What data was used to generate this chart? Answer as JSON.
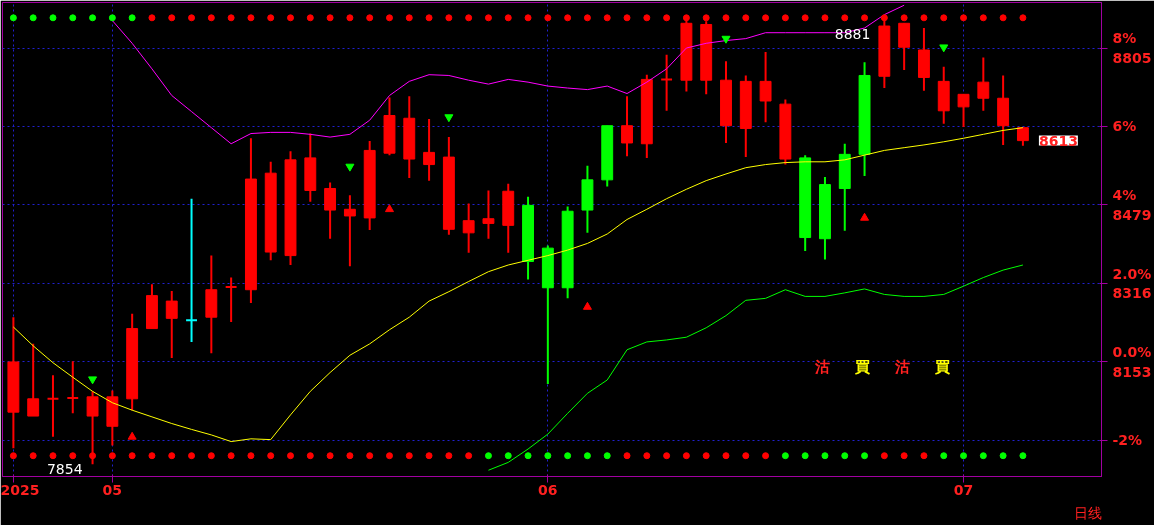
{
  "chart_data": {
    "type": "candlestick",
    "categories": [
      "2025",
      null,
      null,
      null,
      null,
      "05",
      null,
      null,
      null,
      null,
      null,
      null,
      null,
      null,
      null,
      null,
      null,
      null,
      null,
      null,
      null,
      null,
      null,
      null,
      null,
      null,
      null,
      "06",
      null,
      null,
      null,
      null,
      null,
      null,
      null,
      null,
      null,
      null,
      null,
      null,
      null,
      null,
      null,
      null,
      null,
      null,
      null,
      null,
      "07",
      null,
      null,
      null
    ],
    "ohlc": [
      [
        0,
        1.14,
        -2.2,
        -1.28
      ],
      [
        -0.94,
        0.46,
        -1.38,
        -1.38
      ],
      [
        -0.94,
        -0.34,
        -1.91,
        -0.94
      ],
      [
        -0.92,
        0.02,
        -1.31,
        -0.92
      ],
      [
        -0.89,
        -0.75,
        -2.61,
        -1.38
      ],
      [
        -0.89,
        -0.73,
        -2.13,
        -1.64
      ],
      [
        0.85,
        1.23,
        -1.23,
        -0.94
      ],
      [
        1.69,
        1.98,
        0.85,
        0.85
      ],
      [
        1.55,
        1.81,
        0.1,
        1.11
      ],
      [
        1.06,
        4.16,
        0.51,
        1.06
      ],
      [
        1.84,
        2.71,
        0.22,
        1.14
      ],
      [
        1.91,
        2.15,
        1.02,
        1.91
      ],
      [
        4.66,
        5.7,
        1.5,
        1.84
      ],
      [
        4.81,
        5.1,
        2.59,
        2.8
      ],
      [
        5.15,
        5.37,
        2.47,
        2.71
      ],
      [
        5.2,
        5.82,
        4.08,
        4.37
      ],
      [
        4.42,
        4.57,
        3.14,
        3.87
      ],
      [
        3.89,
        4.25,
        2.44,
        3.72
      ],
      [
        5.39,
        5.63,
        3.36,
        3.67
      ],
      [
        6.28,
        6.74,
        5.27,
        5.32
      ],
      [
        6.21,
        6.77,
        4.69,
        5.17
      ],
      [
        5.34,
        6.19,
        4.62,
        5.03
      ],
      [
        5.22,
        5.73,
        3.24,
        3.38
      ],
      [
        3.6,
        4.04,
        2.78,
        3.29
      ],
      [
        3.65,
        4.37,
        3.14,
        3.53
      ],
      [
        4.35,
        4.54,
        2.78,
        3.48
      ],
      [
        2.56,
        4.21,
        2.1,
        3.99
      ],
      [
        1.89,
        2.97,
        -0.56,
        2.9
      ],
      [
        1.89,
        3.96,
        1.62,
        3.84
      ],
      [
        3.87,
        5.0,
        3.29,
        4.64
      ],
      [
        4.64,
        6.02,
        4.47,
        6.02
      ],
      [
        6.02,
        6.77,
        5.24,
        5.58
      ],
      [
        7.2,
        7.32,
        5.2,
        5.56
      ],
      [
        7.2,
        7.83,
        6.4,
        7.2
      ],
      [
        8.63,
        8.73,
        6.89,
        7.18
      ],
      [
        8.6,
        8.68,
        6.82,
        7.18
      ],
      [
        7.18,
        7.66,
        5.58,
        6.02
      ],
      [
        7.15,
        7.3,
        5.22,
        5.95
      ],
      [
        7.15,
        7.9,
        6.11,
        6.65
      ],
      [
        6.57,
        6.69,
        5.03,
        5.17
      ],
      [
        3.17,
        5.27,
        2.83,
        5.2
      ],
      [
        3.14,
        4.71,
        2.61,
        4.52
      ],
      [
        4.42,
        5.56,
        3.34,
        5.29
      ],
      [
        5.29,
        7.64,
        4.74,
        7.3
      ],
      [
        8.56,
        8.8,
        6.98,
        7.28
      ],
      [
        8.63,
        8.63,
        7.44,
        8.02
      ],
      [
        7.95,
        8.51,
        6.91,
        7.25
      ],
      [
        7.15,
        7.52,
        6.07,
        6.4
      ],
      [
        6.82,
        6.82,
        5.99,
        6.5
      ],
      [
        7.13,
        7.76,
        6.4,
        6.72
      ],
      [
        6.72,
        7.3,
        5.53,
        6.02
      ],
      [
        5.97,
        5.97,
        5.51,
        5.64
      ]
    ],
    "colors": [
      "#ff0000",
      "#ff0000",
      "#ff0000",
      "#ff0000",
      "#ff0000",
      "#ff0000",
      "#ff0000",
      "#ff0000",
      "#ff0000",
      "#00ffff",
      "#ff0000",
      "#ff0000",
      "#ff0000",
      "#ff0000",
      "#ff0000",
      "#ff0000",
      "#ff0000",
      "#ff0000",
      "#ff0000",
      "#ff0000",
      "#ff0000",
      "#ff0000",
      "#ff0000",
      "#ff0000",
      "#ff0000",
      "#ff0000",
      "#00ff00",
      "#00ff00",
      "#00ff00",
      "#00ff00",
      "#00ff00",
      "#ff0000",
      "#ff0000",
      "#ff0000",
      "#ff0000",
      "#ff0000",
      "#ff0000",
      "#ff0000",
      "#ff0000",
      "#ff0000",
      "#00ff00",
      "#00ff00",
      "#00ff00",
      "#00ff00",
      "#ff0000",
      "#ff0000",
      "#ff0000",
      "#ff0000",
      "#ff0000",
      "#ff0000",
      "#ff0000",
      "#ff0000"
    ],
    "series": [
      {
        "type": "line",
        "color": "#ff00ff",
        "values": [
          null,
          null,
          null,
          null,
          null,
          8.7,
          8.12,
          7.47,
          6.79,
          6.38,
          5.97,
          5.56,
          5.82,
          5.85,
          5.85,
          5.8,
          5.73,
          5.8,
          6.16,
          6.79,
          7.15,
          7.32,
          7.3,
          7.18,
          7.08,
          7.2,
          7.13,
          7.03,
          6.98,
          6.94,
          7.03,
          6.84,
          7.13,
          7.47,
          8.0,
          8.12,
          8.19,
          8.24,
          8.39,
          8.39,
          8.39,
          8.39,
          8.39,
          8.51,
          8.85,
          9.09,
          null,
          null,
          null,
          null,
          null,
          null
        ]
      },
      {
        "type": "line",
        "color": "#ffff00",
        "values": [
          0.89,
          0.41,
          -0.02,
          -0.39,
          -0.75,
          -1.04,
          -1.23,
          -1.4,
          -1.57,
          -1.72,
          -1.86,
          -2.03,
          -1.96,
          -1.98,
          -1.35,
          -0.75,
          -0.27,
          0.17,
          0.46,
          0.82,
          1.14,
          1.55,
          1.79,
          2.05,
          2.3,
          2.47,
          2.59,
          2.71,
          2.85,
          3.02,
          3.26,
          3.63,
          3.89,
          4.16,
          4.4,
          4.62,
          4.79,
          4.95,
          5.03,
          5.08,
          5.1,
          5.1,
          5.15,
          5.27,
          5.39,
          5.46,
          5.53,
          5.61,
          5.7,
          5.8,
          5.9,
          5.97
        ]
      },
      {
        "type": "line",
        "color": "#00ff00",
        "values": [
          null,
          null,
          null,
          null,
          null,
          null,
          null,
          null,
          null,
          null,
          null,
          null,
          null,
          null,
          null,
          null,
          null,
          null,
          null,
          null,
          null,
          null,
          null,
          null,
          -2.76,
          -2.56,
          -2.22,
          -1.84,
          -1.31,
          -0.8,
          -0.46,
          0.31,
          0.51,
          0.56,
          0.63,
          0.87,
          1.18,
          1.57,
          1.62,
          1.84,
          1.67,
          1.67,
          1.76,
          1.86,
          1.72,
          1.67,
          1.67,
          1.72,
          1.93,
          2.15,
          2.34,
          2.47
        ]
      },
      {
        "type": "scatter",
        "marker": "circle",
        "values": [
          8.77,
          8.77,
          8.77,
          8.77,
          8.77,
          8.77,
          8.77,
          8.77,
          8.77,
          8.77,
          8.77,
          8.77,
          8.77,
          8.77,
          8.77,
          8.77,
          8.77,
          8.77,
          8.77,
          8.77,
          8.77,
          8.77,
          8.77,
          8.77,
          8.77,
          8.77,
          8.77,
          8.77,
          8.77,
          8.77,
          8.77,
          8.77,
          8.77,
          8.77,
          8.77,
          8.77,
          8.77,
          8.77,
          8.77,
          8.77,
          8.77,
          8.77,
          8.77,
          8.77,
          8.77,
          8.77,
          8.77,
          8.77,
          8.77,
          8.77,
          8.77,
          8.77
        ],
        "colors": [
          "#00ff00",
          "#00ff00",
          "#00ff00",
          "#00ff00",
          "#00ff00",
          "#00ff00",
          "#00ff00",
          "#ff0000",
          "#ff0000",
          "#ff0000",
          "#ff0000",
          "#ff0000",
          "#ff0000",
          "#ff0000",
          "#ff0000",
          "#ff0000",
          "#ff0000",
          "#ff0000",
          "#ff0000",
          "#ff0000",
          "#ff0000",
          "#ff0000",
          "#ff0000",
          "#ff0000",
          "#ff0000",
          "#ff0000",
          "#ff0000",
          "#ff0000",
          "#ff0000",
          "#ff0000",
          "#ff0000",
          "#ff0000",
          "#ff0000",
          "#ff0000",
          "#ff0000",
          "#ff0000",
          "#ff0000",
          "#ff0000",
          "#ff0000",
          "#ff0000",
          "#ff0000",
          "#ff0000",
          "#ff0000",
          "#ff0000",
          "#ff0000",
          "#ff0000",
          "#ff0000",
          "#ff0000",
          "#ff0000",
          "#ff0000",
          "#ff0000",
          "#ff0000"
        ]
      },
      {
        "type": "scatter",
        "marker": "circle",
        "values": [
          -2.39,
          -2.39,
          -2.39,
          -2.39,
          -2.39,
          -2.39,
          -2.39,
          -2.39,
          -2.39,
          -2.39,
          -2.39,
          -2.39,
          -2.39,
          -2.39,
          -2.39,
          -2.39,
          -2.39,
          -2.39,
          -2.39,
          -2.39,
          -2.39,
          -2.39,
          -2.39,
          -2.39,
          -2.39,
          -2.39,
          -2.39,
          -2.39,
          -2.39,
          -2.39,
          -2.39,
          -2.39,
          -2.39,
          -2.39,
          -2.39,
          -2.39,
          -2.39,
          -2.39,
          -2.39,
          -2.39,
          -2.39,
          -2.39,
          -2.39,
          -2.39,
          -2.39,
          -2.39,
          -2.39,
          -2.39,
          -2.39,
          -2.39,
          -2.39,
          -2.39
        ],
        "colors": [
          "#ff0000",
          "#ff0000",
          "#ff0000",
          "#ff0000",
          "#ff0000",
          "#ff0000",
          "#ff0000",
          "#ff0000",
          "#ff0000",
          "#ff0000",
          "#ff0000",
          "#ff0000",
          "#ff0000",
          "#ff0000",
          "#ff0000",
          "#ff0000",
          "#ff0000",
          "#ff0000",
          "#ff0000",
          "#ff0000",
          "#ff0000",
          "#ff0000",
          "#ff0000",
          "#ff0000",
          "#00ff00",
          "#00ff00",
          "#00ff00",
          "#00ff00",
          "#00ff00",
          "#00ff00",
          "#00ff00",
          "#ff0000",
          "#ff0000",
          "#ff0000",
          "#ff0000",
          "#ff0000",
          "#ff0000",
          "#ff0000",
          "#ff0000",
          "#00ff00",
          "#00ff00",
          "#00ff00",
          "#00ff00",
          "#00ff00",
          "#ff0000",
          "#ff0000",
          "#ff0000",
          "#00ff00",
          "#00ff00",
          "#00ff00",
          "#00ff00",
          "#00ff00"
        ]
      },
      {
        "type": "scatter",
        "color": "#00ff00",
        "marker": "triangle",
        "values": [
          null,
          null,
          null,
          null,
          -0.44,
          null,
          null,
          null,
          null,
          null,
          null,
          null,
          null,
          null,
          null,
          null,
          null,
          4.98,
          null,
          null,
          null,
          null,
          6.24,
          null,
          null,
          null,
          null,
          null,
          null,
          null,
          null,
          null,
          null,
          null,
          null,
          null,
          8.24,
          null,
          null,
          null,
          null,
          null,
          null,
          null,
          null,
          null,
          null,
          8.02,
          null,
          null,
          null,
          null
        ]
      },
      {
        "type": "scatter",
        "color": "#ff0000",
        "marker": "triangle",
        "values": [
          null,
          null,
          null,
          null,
          null,
          null,
          -1.91,
          null,
          null,
          null,
          null,
          null,
          null,
          null,
          null,
          null,
          null,
          null,
          null,
          3.89,
          null,
          null,
          null,
          null,
          null,
          null,
          null,
          null,
          null,
          1.4,
          null,
          null,
          null,
          null,
          null,
          null,
          null,
          null,
          null,
          null,
          null,
          null,
          null,
          3.67,
          null,
          null,
          null,
          null,
          null,
          null,
          null,
          null
        ]
      }
    ],
    "ylim": [
      -2.92,
      9.16
    ],
    "yticks": [
      {
        "value": -2,
        "label": "-2%"
      },
      {
        "value": 0,
        "label": "0.0%\n8153"
      },
      {
        "value": 2,
        "label": "2.0%\n8316"
      },
      {
        "value": 4,
        "label": "4%\n8479"
      },
      {
        "value": 6,
        "label": "6%"
      },
      {
        "value": 8,
        "label": "8%\n8805"
      }
    ],
    "grid": true,
    "annotations": [
      "沽",
      "買",
      "沽",
      "買",
      "8881",
      "7854",
      "8613",
      "日线"
    ]
  }
}
